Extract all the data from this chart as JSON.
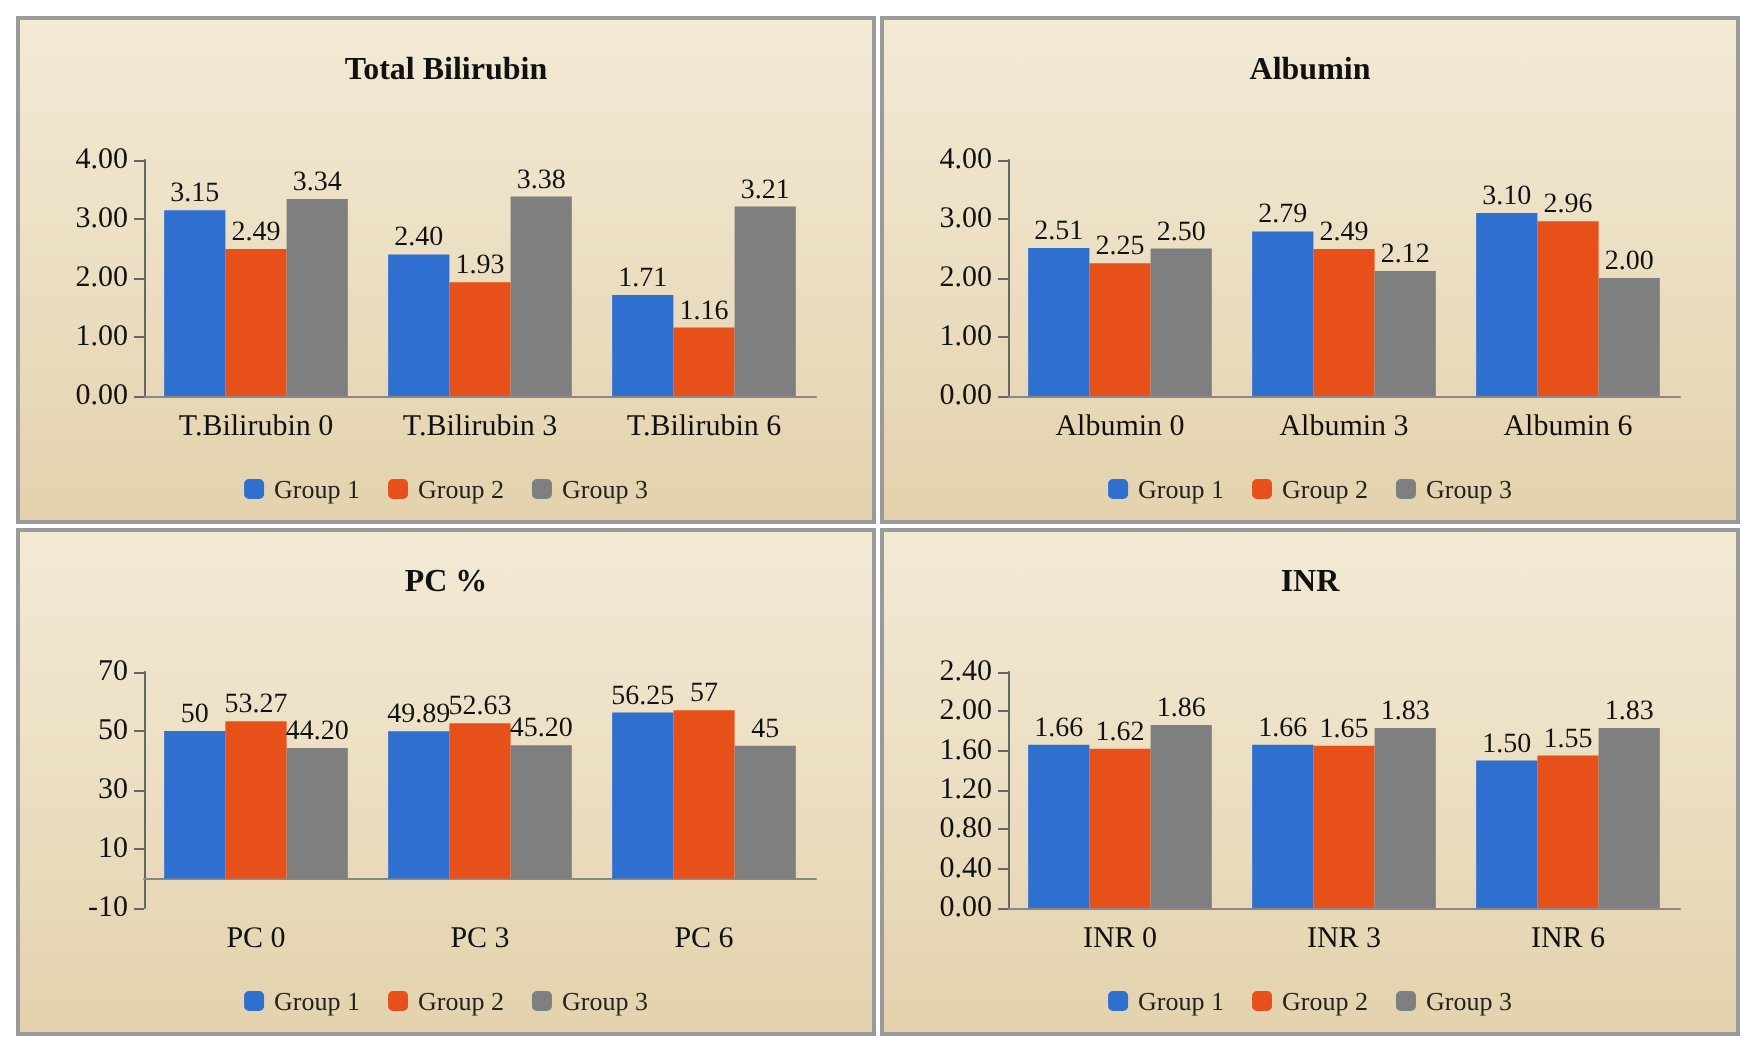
{
  "chart_data": [
    {
      "type": "bar",
      "title": "Total Bilirubin",
      "categories": [
        "T.Bilirubin 0",
        "T.Bilirubin 3",
        "T.Bilirubin 6"
      ],
      "ylim": [
        0,
        4
      ],
      "yticks": [
        {
          "value": 0,
          "label": "0.00"
        },
        {
          "value": 1,
          "label": "1.00"
        },
        {
          "value": 2,
          "label": "2.00"
        },
        {
          "value": 3,
          "label": "3.00"
        },
        {
          "value": 4,
          "label": "4.00"
        }
      ],
      "grid": false,
      "legend": "bottom",
      "series": [
        {
          "name": "Group 1",
          "color": "#2f6fd0",
          "values": [
            3.15,
            2.4,
            1.71
          ],
          "value_labels": [
            "3.15",
            "2.40",
            "1.71"
          ]
        },
        {
          "name": "Group 2",
          "color": "#e8501a",
          "values": [
            2.49,
            1.93,
            1.16
          ],
          "value_labels": [
            "2.49",
            "1.93",
            "1.16"
          ]
        },
        {
          "name": "Group 3",
          "color": "#7f7f7f",
          "values": [
            3.34,
            3.38,
            3.21
          ],
          "value_labels": [
            "3.34",
            "3.38",
            "3.21"
          ]
        }
      ]
    },
    {
      "type": "bar",
      "title": "Albumin",
      "categories": [
        "Albumin 0",
        "Albumin 3",
        "Albumin 6"
      ],
      "ylim": [
        0,
        4
      ],
      "yticks": [
        {
          "value": 0,
          "label": "0.00"
        },
        {
          "value": 1,
          "label": "1.00"
        },
        {
          "value": 2,
          "label": "2.00"
        },
        {
          "value": 3,
          "label": "3.00"
        },
        {
          "value": 4,
          "label": "4.00"
        }
      ],
      "grid": false,
      "legend": "bottom",
      "series": [
        {
          "name": "Group 1",
          "color": "#2f6fd0",
          "values": [
            2.51,
            2.79,
            3.1
          ],
          "value_labels": [
            "2.51",
            "2.79",
            "3.10"
          ]
        },
        {
          "name": "Group 2",
          "color": "#e8501a",
          "values": [
            2.25,
            2.49,
            2.96
          ],
          "value_labels": [
            "2.25",
            "2.49",
            "2.96"
          ]
        },
        {
          "name": "Group 3",
          "color": "#7f7f7f",
          "values": [
            2.5,
            2.12,
            2.0
          ],
          "value_labels": [
            "2.50",
            "2.12",
            "2.00"
          ]
        }
      ]
    },
    {
      "type": "bar",
      "title": "PC %",
      "categories": [
        "PC 0",
        "PC 3",
        "PC 6"
      ],
      "ylim": [
        -10,
        70
      ],
      "yticks": [
        -10,
        10,
        30,
        50,
        70
      ],
      "grid": false,
      "legend": "bottom",
      "series": [
        {
          "name": "Group 1",
          "color": "#2f6fd0",
          "values": [
            50,
            49.89,
            56.25
          ],
          "value_labels": [
            "50",
            "49.89",
            "56.25"
          ]
        },
        {
          "name": "Group 2",
          "color": "#e8501a",
          "values": [
            53.27,
            52.63,
            57
          ],
          "value_labels": [
            "53.27",
            "52.63",
            "57"
          ]
        },
        {
          "name": "Group 3",
          "color": "#7f7f7f",
          "values": [
            44.2,
            45.2,
            45
          ],
          "value_labels": [
            "44.20",
            "45.20",
            "45"
          ]
        }
      ]
    },
    {
      "type": "bar",
      "title": "INR",
      "categories": [
        "INR 0",
        "INR 3",
        "INR 6"
      ],
      "ylim": [
        0,
        2.4
      ],
      "yticks": [
        {
          "value": 0,
          "label": "0.00"
        },
        {
          "value": 0.4,
          "label": "0.40"
        },
        {
          "value": 0.8,
          "label": "0.80"
        },
        {
          "value": 1.2,
          "label": "1.20"
        },
        {
          "value": 1.6,
          "label": "1.60"
        },
        {
          "value": 2,
          "label": "2.00"
        },
        {
          "value": 2.4,
          "label": "2.40"
        }
      ],
      "grid": false,
      "legend": "bottom",
      "series": [
        {
          "name": "Group 1",
          "color": "#2f6fd0",
          "values": [
            1.66,
            1.66,
            1.5
          ],
          "value_labels": [
            "1.66",
            "1.66",
            "1.50"
          ]
        },
        {
          "name": "Group 2",
          "color": "#e8501a",
          "values": [
            1.62,
            1.65,
            1.55
          ],
          "value_labels": [
            "1.62",
            "1.65",
            "1.55"
          ]
        },
        {
          "name": "Group 3",
          "color": "#7f7f7f",
          "values": [
            1.86,
            1.83,
            1.83
          ],
          "value_labels": [
            "1.86",
            "1.83",
            "1.83"
          ]
        }
      ]
    }
  ]
}
